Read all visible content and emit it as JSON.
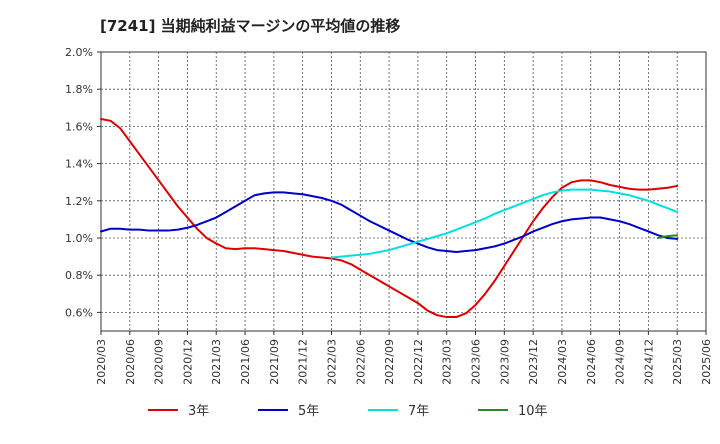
{
  "chart_data": {
    "type": "line",
    "title": "[7241]  当期純利益マージンの平均値の推移",
    "xlabel": "",
    "ylabel": "",
    "x_ticks": [
      "2020/03",
      "2020/06",
      "2020/09",
      "2020/12",
      "2021/03",
      "2021/06",
      "2021/09",
      "2021/12",
      "2022/03",
      "2022/06",
      "2022/09",
      "2022/12",
      "2023/03",
      "2023/06",
      "2023/09",
      "2023/12",
      "2024/03",
      "2024/06",
      "2024/09",
      "2024/12",
      "2025/03",
      "2025/06"
    ],
    "y_ticks": [
      "0.6%",
      "0.8%",
      "1.0%",
      "1.2%",
      "1.4%",
      "1.6%",
      "1.8%",
      "2.0%"
    ],
    "ylim": [
      0.5,
      2.0
    ],
    "grid": true,
    "legend_position": "bottom",
    "series": [
      {
        "name": "3年",
        "color": "#e00000",
        "points": [
          [
            "2020/03",
            1.64
          ],
          [
            "2020/04",
            1.63
          ],
          [
            "2020/05",
            1.59
          ],
          [
            "2020/06",
            1.52
          ],
          [
            "2020/07",
            1.45
          ],
          [
            "2020/08",
            1.38
          ],
          [
            "2020/09",
            1.31
          ],
          [
            "2020/10",
            1.24
          ],
          [
            "2020/11",
            1.17
          ],
          [
            "2020/12",
            1.11
          ],
          [
            "2021/01",
            1.05
          ],
          [
            "2021/02",
            1.0
          ],
          [
            "2021/03",
            0.97
          ],
          [
            "2021/04",
            0.945
          ],
          [
            "2021/05",
            0.94
          ],
          [
            "2021/06",
            0.945
          ],
          [
            "2021/07",
            0.945
          ],
          [
            "2021/08",
            0.94
          ],
          [
            "2021/09",
            0.935
          ],
          [
            "2021/10",
            0.93
          ],
          [
            "2021/11",
            0.92
          ],
          [
            "2021/12",
            0.91
          ],
          [
            "2022/01",
            0.9
          ],
          [
            "2022/02",
            0.895
          ],
          [
            "2022/03",
            0.89
          ],
          [
            "2022/04",
            0.88
          ],
          [
            "2022/05",
            0.86
          ],
          [
            "2022/06",
            0.83
          ],
          [
            "2022/07",
            0.8
          ],
          [
            "2022/08",
            0.77
          ],
          [
            "2022/09",
            0.74
          ],
          [
            "2022/10",
            0.71
          ],
          [
            "2022/11",
            0.68
          ],
          [
            "2022/12",
            0.65
          ],
          [
            "2023/01",
            0.61
          ],
          [
            "2023/02",
            0.585
          ],
          [
            "2023/03",
            0.575
          ],
          [
            "2023/04",
            0.575
          ],
          [
            "2023/05",
            0.595
          ],
          [
            "2023/06",
            0.64
          ],
          [
            "2023/07",
            0.7
          ],
          [
            "2023/08",
            0.77
          ],
          [
            "2023/09",
            0.85
          ],
          [
            "2023/10",
            0.93
          ],
          [
            "2023/11",
            1.01
          ],
          [
            "2023/12",
            1.09
          ],
          [
            "2024/01",
            1.16
          ],
          [
            "2024/02",
            1.22
          ],
          [
            "2024/03",
            1.27
          ],
          [
            "2024/04",
            1.3
          ],
          [
            "2024/05",
            1.31
          ],
          [
            "2024/06",
            1.31
          ],
          [
            "2024/07",
            1.3
          ],
          [
            "2024/08",
            1.285
          ],
          [
            "2024/09",
            1.275
          ],
          [
            "2024/10",
            1.265
          ],
          [
            "2024/11",
            1.26
          ],
          [
            "2024/12",
            1.26
          ],
          [
            "2025/01",
            1.265
          ],
          [
            "2025/02",
            1.27
          ],
          [
            "2025/03",
            1.28
          ]
        ]
      },
      {
        "name": "5年",
        "color": "#0000c8",
        "points": [
          [
            "2020/03",
            1.035
          ],
          [
            "2020/04",
            1.05
          ],
          [
            "2020/05",
            1.05
          ],
          [
            "2020/06",
            1.045
          ],
          [
            "2020/07",
            1.045
          ],
          [
            "2020/08",
            1.04
          ],
          [
            "2020/09",
            1.04
          ],
          [
            "2020/10",
            1.04
          ],
          [
            "2020/11",
            1.045
          ],
          [
            "2020/12",
            1.055
          ],
          [
            "2021/01",
            1.07
          ],
          [
            "2021/02",
            1.09
          ],
          [
            "2021/03",
            1.11
          ],
          [
            "2021/04",
            1.14
          ],
          [
            "2021/05",
            1.17
          ],
          [
            "2021/06",
            1.2
          ],
          [
            "2021/07",
            1.23
          ],
          [
            "2021/08",
            1.24
          ],
          [
            "2021/09",
            1.245
          ],
          [
            "2021/10",
            1.245
          ],
          [
            "2021/11",
            1.24
          ],
          [
            "2021/12",
            1.235
          ],
          [
            "2022/01",
            1.225
          ],
          [
            "2022/02",
            1.215
          ],
          [
            "2022/03",
            1.2
          ],
          [
            "2022/04",
            1.18
          ],
          [
            "2022/05",
            1.15
          ],
          [
            "2022/06",
            1.12
          ],
          [
            "2022/07",
            1.09
          ],
          [
            "2022/08",
            1.065
          ],
          [
            "2022/09",
            1.04
          ],
          [
            "2022/10",
            1.015
          ],
          [
            "2022/11",
            0.99
          ],
          [
            "2022/12",
            0.97
          ],
          [
            "2023/01",
            0.95
          ],
          [
            "2023/02",
            0.935
          ],
          [
            "2023/03",
            0.93
          ],
          [
            "2023/04",
            0.925
          ],
          [
            "2023/05",
            0.93
          ],
          [
            "2023/06",
            0.935
          ],
          [
            "2023/07",
            0.945
          ],
          [
            "2023/08",
            0.955
          ],
          [
            "2023/09",
            0.97
          ],
          [
            "2023/10",
            0.99
          ],
          [
            "2023/11",
            1.01
          ],
          [
            "2023/12",
            1.035
          ],
          [
            "2024/01",
            1.055
          ],
          [
            "2024/02",
            1.075
          ],
          [
            "2024/03",
            1.09
          ],
          [
            "2024/04",
            1.1
          ],
          [
            "2024/05",
            1.105
          ],
          [
            "2024/06",
            1.11
          ],
          [
            "2024/07",
            1.11
          ],
          [
            "2024/08",
            1.1
          ],
          [
            "2024/09",
            1.09
          ],
          [
            "2024/10",
            1.075
          ],
          [
            "2024/11",
            1.055
          ],
          [
            "2024/12",
            1.035
          ],
          [
            "2025/01",
            1.015
          ],
          [
            "2025/02",
            1.0
          ],
          [
            "2025/03",
            0.995
          ]
        ]
      },
      {
        "name": "7年",
        "color": "#00e0e0",
        "points": [
          [
            "2022/03",
            0.895
          ],
          [
            "2022/04",
            0.9
          ],
          [
            "2022/05",
            0.905
          ],
          [
            "2022/06",
            0.91
          ],
          [
            "2022/07",
            0.915
          ],
          [
            "2022/08",
            0.925
          ],
          [
            "2022/09",
            0.935
          ],
          [
            "2022/10",
            0.95
          ],
          [
            "2022/11",
            0.965
          ],
          [
            "2022/12",
            0.98
          ],
          [
            "2023/01",
            0.995
          ],
          [
            "2023/02",
            1.01
          ],
          [
            "2023/03",
            1.025
          ],
          [
            "2023/04",
            1.045
          ],
          [
            "2023/05",
            1.065
          ],
          [
            "2023/06",
            1.085
          ],
          [
            "2023/07",
            1.105
          ],
          [
            "2023/08",
            1.13
          ],
          [
            "2023/09",
            1.15
          ],
          [
            "2023/10",
            1.17
          ],
          [
            "2023/11",
            1.19
          ],
          [
            "2023/12",
            1.21
          ],
          [
            "2024/01",
            1.23
          ],
          [
            "2024/02",
            1.245
          ],
          [
            "2024/03",
            1.255
          ],
          [
            "2024/04",
            1.26
          ],
          [
            "2024/05",
            1.26
          ],
          [
            "2024/06",
            1.26
          ],
          [
            "2024/07",
            1.255
          ],
          [
            "2024/08",
            1.25
          ],
          [
            "2024/09",
            1.24
          ],
          [
            "2024/10",
            1.23
          ],
          [
            "2024/11",
            1.215
          ],
          [
            "2024/12",
            1.2
          ],
          [
            "2025/01",
            1.18
          ],
          [
            "2025/02",
            1.16
          ],
          [
            "2025/03",
            1.14
          ]
        ]
      },
      {
        "name": "10年",
        "color": "#228b22",
        "points": [
          [
            "2025/01",
            1.0
          ],
          [
            "2025/02",
            1.01
          ],
          [
            "2025/03",
            1.015
          ]
        ]
      }
    ]
  }
}
